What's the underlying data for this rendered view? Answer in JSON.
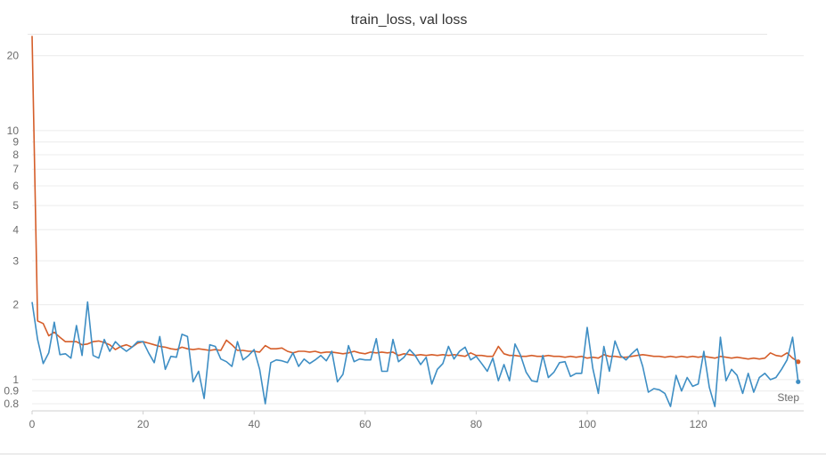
{
  "chart_data": {
    "type": "line",
    "title": "train_loss, val loss",
    "xlabel": "Step",
    "ylabel": "",
    "x_scale": "linear",
    "y_scale": "log",
    "xlim": [
      0,
      139
    ],
    "ylim": [
      0.8,
      24
    ],
    "x_ticks": [
      0,
      20,
      40,
      60,
      80,
      100,
      120
    ],
    "y_ticks": [
      0.8,
      0.9,
      1,
      2,
      3,
      4,
      5,
      6,
      7,
      8,
      9,
      10,
      20
    ],
    "grid": "horizontal",
    "legend": "none",
    "series": [
      {
        "color": "#d55e2a",
        "x": [
          0,
          1,
          2,
          3,
          4,
          5,
          6,
          7,
          8,
          9,
          10,
          11,
          12,
          13,
          14,
          15,
          16,
          17,
          18,
          19,
          20,
          21,
          22,
          23,
          24,
          25,
          26,
          27,
          28,
          29,
          30,
          31,
          32,
          33,
          34,
          35,
          36,
          37,
          38,
          39,
          40,
          41,
          42,
          43,
          44,
          45,
          46,
          47,
          48,
          49,
          50,
          51,
          52,
          53,
          54,
          55,
          56,
          57,
          58,
          59,
          60,
          61,
          62,
          63,
          64,
          65,
          66,
          67,
          68,
          69,
          70,
          71,
          72,
          73,
          74,
          75,
          76,
          77,
          78,
          79,
          80,
          81,
          82,
          83,
          84,
          85,
          86,
          87,
          88,
          89,
          90,
          91,
          92,
          93,
          94,
          95,
          96,
          97,
          98,
          99,
          100,
          101,
          102,
          103,
          104,
          105,
          106,
          107,
          108,
          109,
          110,
          111,
          112,
          113,
          114,
          115,
          116,
          117,
          118,
          119,
          120,
          121,
          122,
          123,
          124,
          125,
          126,
          127,
          128,
          129,
          130,
          131,
          132,
          133,
          134,
          135,
          136,
          137,
          138
        ],
        "values": [
          24.0,
          1.72,
          1.68,
          1.5,
          1.55,
          1.48,
          1.42,
          1.42,
          1.42,
          1.38,
          1.39,
          1.42,
          1.43,
          1.41,
          1.38,
          1.32,
          1.36,
          1.38,
          1.35,
          1.4,
          1.42,
          1.4,
          1.38,
          1.36,
          1.35,
          1.33,
          1.32,
          1.35,
          1.33,
          1.32,
          1.33,
          1.32,
          1.31,
          1.32,
          1.31,
          1.44,
          1.38,
          1.31,
          1.31,
          1.3,
          1.3,
          1.29,
          1.37,
          1.33,
          1.33,
          1.34,
          1.3,
          1.28,
          1.3,
          1.3,
          1.29,
          1.3,
          1.28,
          1.29,
          1.29,
          1.28,
          1.27,
          1.28,
          1.3,
          1.28,
          1.27,
          1.29,
          1.28,
          1.29,
          1.28,
          1.29,
          1.25,
          1.27,
          1.26,
          1.25,
          1.26,
          1.25,
          1.26,
          1.25,
          1.26,
          1.25,
          1.26,
          1.25,
          1.24,
          1.28,
          1.25,
          1.25,
          1.24,
          1.24,
          1.36,
          1.27,
          1.25,
          1.25,
          1.24,
          1.24,
          1.25,
          1.24,
          1.24,
          1.25,
          1.24,
          1.24,
          1.23,
          1.24,
          1.23,
          1.24,
          1.22,
          1.23,
          1.22,
          1.26,
          1.24,
          1.24,
          1.23,
          1.23,
          1.24,
          1.25,
          1.26,
          1.25,
          1.24,
          1.24,
          1.23,
          1.24,
          1.23,
          1.24,
          1.23,
          1.24,
          1.23,
          1.24,
          1.23,
          1.22,
          1.24,
          1.23,
          1.22,
          1.23,
          1.22,
          1.21,
          1.22,
          1.21,
          1.22,
          1.28,
          1.25,
          1.24,
          1.28,
          1.22,
          1.18
        ]
      },
      {
        "color": "#3e8ec4",
        "x": [
          0,
          1,
          2,
          3,
          4,
          5,
          6,
          7,
          8,
          9,
          10,
          11,
          12,
          13,
          14,
          15,
          16,
          17,
          18,
          19,
          20,
          21,
          22,
          23,
          24,
          25,
          26,
          27,
          28,
          29,
          30,
          31,
          32,
          33,
          34,
          35,
          36,
          37,
          38,
          39,
          40,
          41,
          42,
          43,
          44,
          45,
          46,
          47,
          48,
          49,
          50,
          51,
          52,
          53,
          54,
          55,
          56,
          57,
          58,
          59,
          60,
          61,
          62,
          63,
          64,
          65,
          66,
          67,
          68,
          69,
          70,
          71,
          72,
          73,
          74,
          75,
          76,
          77,
          78,
          79,
          80,
          81,
          82,
          83,
          84,
          85,
          86,
          87,
          88,
          89,
          90,
          91,
          92,
          93,
          94,
          95,
          96,
          97,
          98,
          99,
          100,
          101,
          102,
          103,
          104,
          105,
          106,
          107,
          108,
          109,
          110,
          111,
          112,
          113,
          114,
          115,
          116,
          117,
          118,
          119,
          120,
          121,
          122,
          123,
          124,
          125,
          126,
          127,
          128,
          129,
          130,
          131,
          132,
          133,
          134,
          135,
          136,
          137,
          138
        ],
        "values": [
          2.05,
          1.45,
          1.16,
          1.28,
          1.7,
          1.26,
          1.27,
          1.22,
          1.65,
          1.25,
          2.05,
          1.25,
          1.22,
          1.45,
          1.3,
          1.42,
          1.35,
          1.3,
          1.35,
          1.42,
          1.42,
          1.28,
          1.17,
          1.49,
          1.1,
          1.24,
          1.23,
          1.52,
          1.49,
          0.98,
          1.08,
          0.84,
          1.38,
          1.36,
          1.21,
          1.18,
          1.13,
          1.42,
          1.2,
          1.25,
          1.32,
          1.1,
          0.8,
          1.17,
          1.2,
          1.19,
          1.17,
          1.28,
          1.13,
          1.21,
          1.16,
          1.2,
          1.25,
          1.19,
          1.3,
          0.98,
          1.05,
          1.37,
          1.18,
          1.21,
          1.2,
          1.2,
          1.46,
          1.08,
          1.08,
          1.45,
          1.18,
          1.23,
          1.32,
          1.25,
          1.15,
          1.23,
          0.96,
          1.1,
          1.16,
          1.36,
          1.21,
          1.3,
          1.35,
          1.2,
          1.24,
          1.16,
          1.08,
          1.22,
          0.99,
          1.15,
          0.99,
          1.39,
          1.25,
          1.07,
          0.99,
          0.98,
          1.25,
          1.02,
          1.07,
          1.17,
          1.18,
          1.03,
          1.06,
          1.06,
          1.62,
          1.11,
          0.88,
          1.36,
          1.08,
          1.43,
          1.25,
          1.2,
          1.27,
          1.33,
          1.13,
          0.89,
          0.92,
          0.91,
          0.88,
          0.78,
          1.04,
          0.9,
          1.02,
          0.94,
          0.96,
          1.3,
          0.93,
          0.78,
          1.48,
          0.99,
          1.1,
          1.04,
          0.88,
          1.06,
          0.89,
          1.02,
          1.06,
          1.0,
          1.02,
          1.1,
          1.2,
          1.48,
          0.98
        ]
      }
    ]
  }
}
